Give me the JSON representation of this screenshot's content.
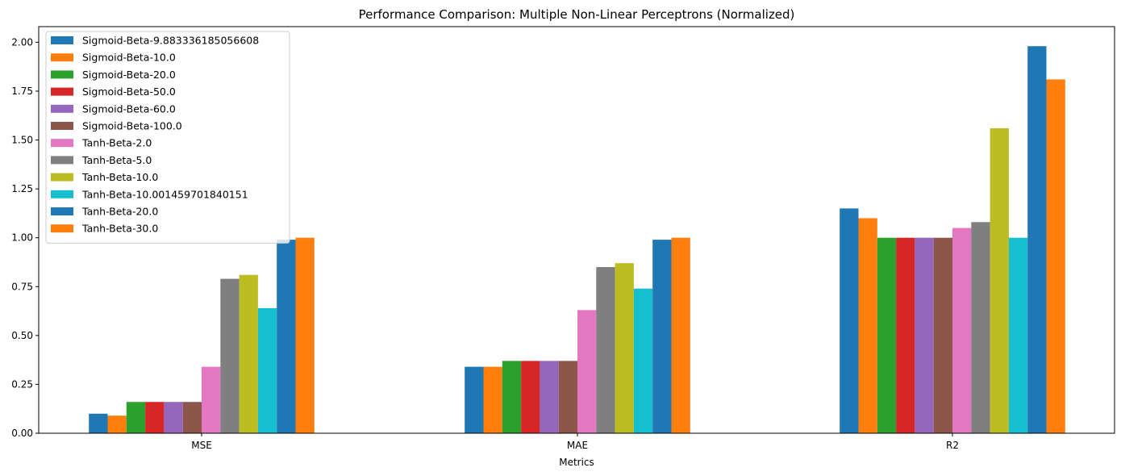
{
  "chart_data": {
    "type": "bar",
    "title": "Performance Comparison: Multiple Non-Linear Perceptrons (Normalized)",
    "xlabel": "Metrics",
    "ylabel": "",
    "categories": [
      "MSE",
      "MAE",
      "R2"
    ],
    "ylim": [
      0,
      2.08
    ],
    "yticks": [
      "0.00",
      "0.25",
      "0.50",
      "0.75",
      "1.00",
      "1.25",
      "1.50",
      "1.75",
      "2.00"
    ],
    "grid": false,
    "legend_position": "top-left",
    "series": [
      {
        "name": "Sigmoid-Beta-9.883336185056608",
        "color": "#1f77b4",
        "values": [
          0.1,
          0.34,
          1.15
        ]
      },
      {
        "name": "Sigmoid-Beta-10.0",
        "color": "#ff7f0e",
        "values": [
          0.09,
          0.34,
          1.1
        ]
      },
      {
        "name": "Sigmoid-Beta-20.0",
        "color": "#2ca02c",
        "values": [
          0.16,
          0.37,
          1.0
        ]
      },
      {
        "name": "Sigmoid-Beta-50.0",
        "color": "#d62728",
        "values": [
          0.16,
          0.37,
          1.0
        ]
      },
      {
        "name": "Sigmoid-Beta-60.0",
        "color": "#9467bd",
        "values": [
          0.16,
          0.37,
          1.0
        ]
      },
      {
        "name": "Sigmoid-Beta-100.0",
        "color": "#8c564b",
        "values": [
          0.16,
          0.37,
          1.0
        ]
      },
      {
        "name": "Tanh-Beta-2.0",
        "color": "#e377c2",
        "values": [
          0.34,
          0.63,
          1.05
        ]
      },
      {
        "name": "Tanh-Beta-5.0",
        "color": "#7f7f7f",
        "values": [
          0.79,
          0.85,
          1.08
        ]
      },
      {
        "name": "Tanh-Beta-10.0",
        "color": "#bcbd22",
        "values": [
          0.81,
          0.87,
          1.56
        ]
      },
      {
        "name": "Tanh-Beta-10.001459701840151",
        "color": "#17becf",
        "values": [
          0.64,
          0.74,
          1.0
        ]
      },
      {
        "name": "Tanh-Beta-20.0",
        "color": "#1f77b4",
        "values": [
          0.99,
          0.99,
          1.98
        ]
      },
      {
        "name": "Tanh-Beta-30.0",
        "color": "#ff7f0e",
        "values": [
          1.0,
          1.0,
          1.81
        ]
      }
    ]
  }
}
